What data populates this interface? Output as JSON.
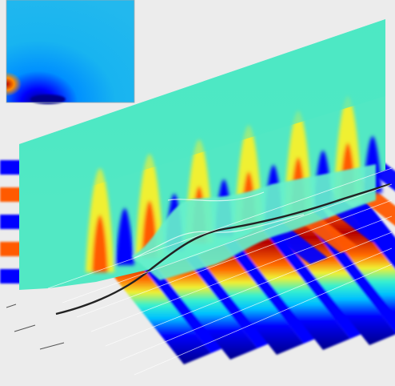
{
  "figure": {
    "colormap": [
      "#00008b",
      "#0000ff",
      "#00c0ff",
      "#36f0d0",
      "#f0f032",
      "#ff5a00",
      "#b40000"
    ],
    "background": "#ececec",
    "wave_stripe_count": 6,
    "vertical_peak_count": 6,
    "curve_label": "",
    "inset_caption": ""
  }
}
